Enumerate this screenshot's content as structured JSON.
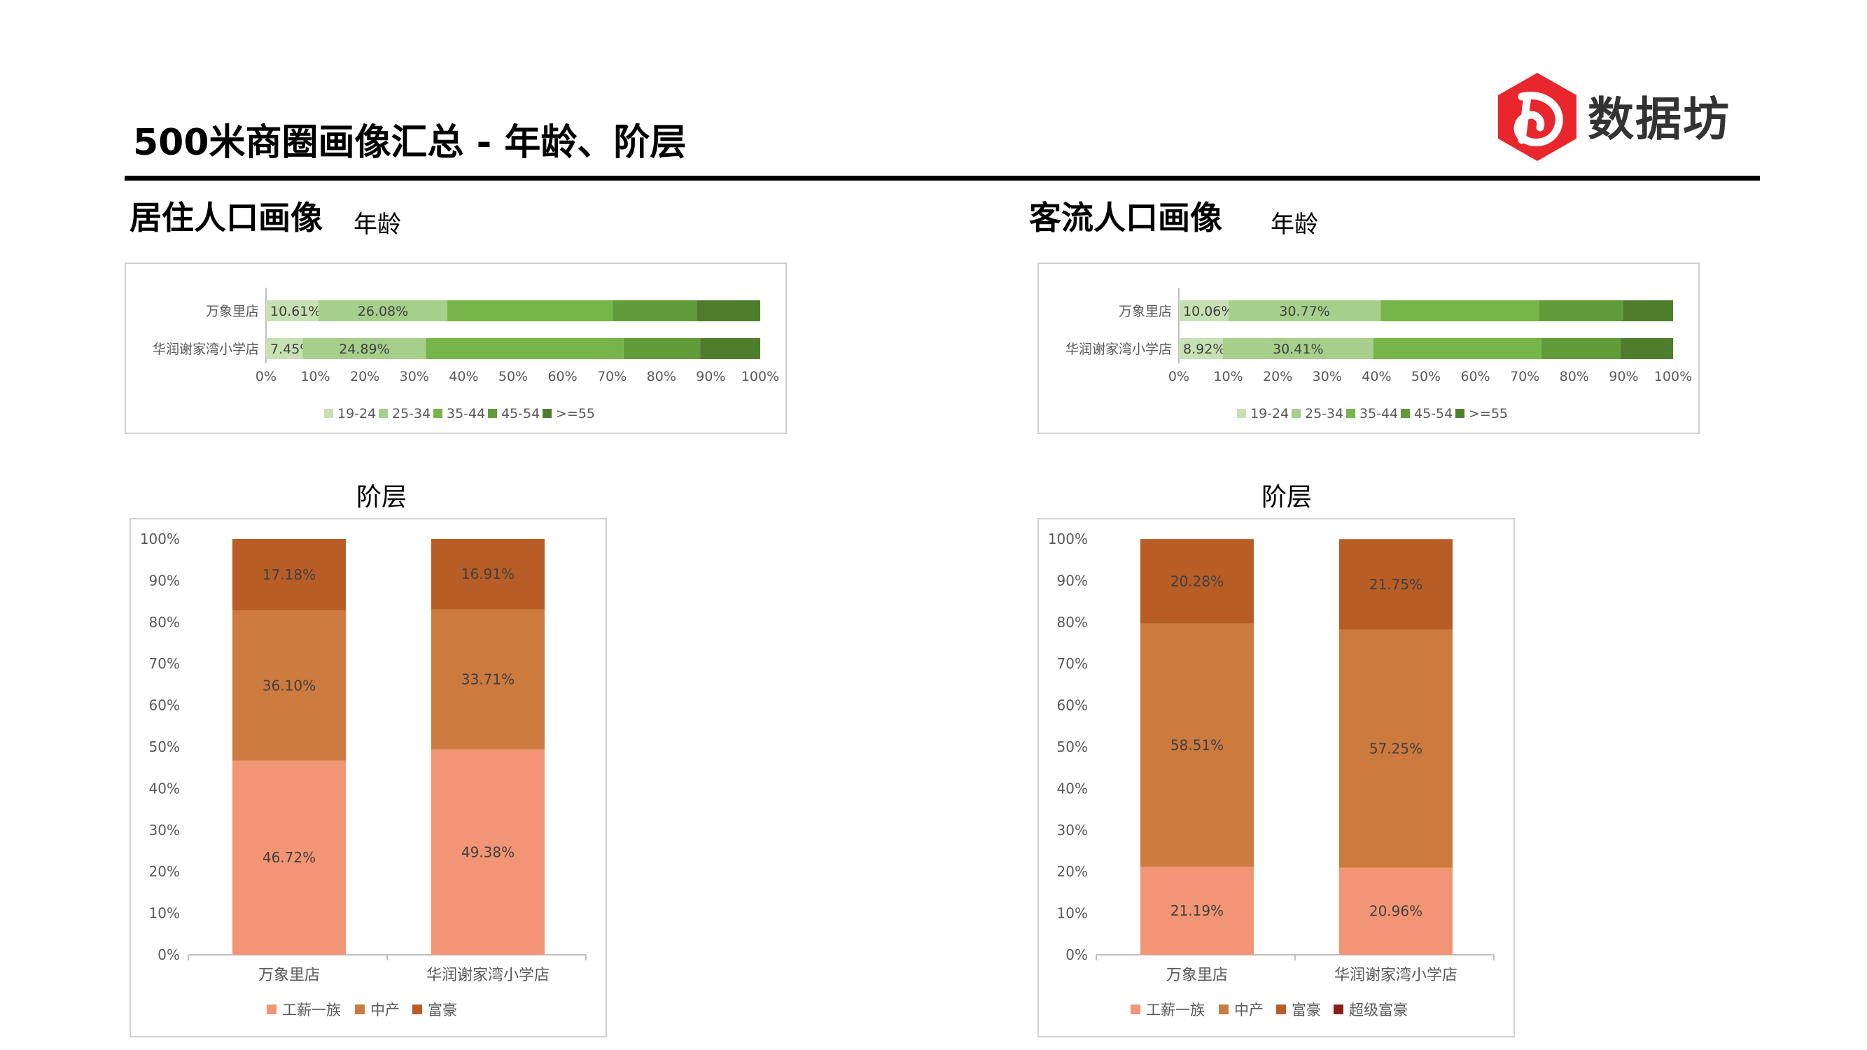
{
  "page": {
    "title": "500米商圈画像汇总 - 年龄、阶层",
    "brand": "数据坊",
    "brand_color": "#e8262c"
  },
  "sections": {
    "resident": {
      "title": "居住人口画像",
      "age_label": "年龄",
      "class_label": "阶层"
    },
    "visitor": {
      "title": "客流人口画像",
      "age_label": "年龄",
      "class_label": "阶层"
    }
  },
  "chart_data": [
    {
      "id": "resident-age",
      "type": "bar",
      "orientation": "horizontal",
      "stacked": "percent",
      "categories": [
        "万象里店",
        "华润谢家湾小学店"
      ],
      "series": [
        {
          "name": "19-24",
          "color": "#c7e0b4",
          "values": [
            10.61,
            7.45
          ],
          "labels": [
            "10.61%",
            "7.45%"
          ]
        },
        {
          "name": "25-34",
          "color": "#a5cf8b",
          "values": [
            26.08,
            24.89
          ],
          "labels": [
            "26.08%",
            "24.89%"
          ]
        },
        {
          "name": "35-44",
          "color": "#76b54a",
          "values": [
            33.5,
            40.0
          ],
          "labels": [
            "",
            ""
          ]
        },
        {
          "name": "45-54",
          "color": "#629c3a",
          "values": [
            17.0,
            15.5
          ],
          "labels": [
            "",
            ""
          ]
        },
        {
          "name": ">=55",
          "color": "#4e7d2b",
          "values": [
            12.81,
            12.16
          ],
          "labels": [
            "",
            ""
          ]
        }
      ],
      "xticks": [
        "0%",
        "10%",
        "20%",
        "30%",
        "40%",
        "50%",
        "60%",
        "70%",
        "80%",
        "90%",
        "100%"
      ],
      "xlim": [
        0,
        100
      ],
      "legend_position": "bottom"
    },
    {
      "id": "visitor-age",
      "type": "bar",
      "orientation": "horizontal",
      "stacked": "percent",
      "categories": [
        "万象里店",
        "华润谢家湾小学店"
      ],
      "series": [
        {
          "name": "19-24",
          "color": "#c7e0b4",
          "values": [
            10.06,
            8.92
          ],
          "labels": [
            "10.06%",
            "8.92%"
          ]
        },
        {
          "name": "25-34",
          "color": "#a5cf8b",
          "values": [
            30.77,
            30.41
          ],
          "labels": [
            "30.77%",
            "30.41%"
          ]
        },
        {
          "name": "35-44",
          "color": "#76b54a",
          "values": [
            32.0,
            34.0
          ],
          "labels": [
            "",
            ""
          ]
        },
        {
          "name": "45-54",
          "color": "#629c3a",
          "values": [
            17.0,
            16.0
          ],
          "labels": [
            "",
            ""
          ]
        },
        {
          "name": ">=55",
          "color": "#4e7d2b",
          "values": [
            10.17,
            10.67
          ],
          "labels": [
            "",
            ""
          ]
        }
      ],
      "xticks": [
        "0%",
        "10%",
        "20%",
        "30%",
        "40%",
        "50%",
        "60%",
        "70%",
        "80%",
        "90%",
        "100%"
      ],
      "xlim": [
        0,
        100
      ],
      "legend_position": "bottom"
    },
    {
      "id": "resident-class",
      "type": "bar",
      "orientation": "vertical",
      "stacked": "percent",
      "title": "阶层",
      "categories": [
        "万象里店",
        "华润谢家湾小学店"
      ],
      "series": [
        {
          "name": "工薪一族",
          "color": "#f19574",
          "values": [
            46.72,
            49.38
          ],
          "labels": [
            "46.72%",
            "49.38%"
          ]
        },
        {
          "name": "中产",
          "color": "#cc7a3e",
          "values": [
            36.1,
            33.71
          ],
          "labels": [
            "36.10%",
            "33.71%"
          ]
        },
        {
          "name": "富豪",
          "color": "#b85d26",
          "values": [
            17.18,
            16.91
          ],
          "labels": [
            "17.18%",
            "16.91%"
          ]
        }
      ],
      "yticks": [
        "0%",
        "10%",
        "20%",
        "30%",
        "40%",
        "50%",
        "60%",
        "70%",
        "80%",
        "90%",
        "100%"
      ],
      "ylim": [
        0,
        100
      ],
      "legend_position": "bottom"
    },
    {
      "id": "visitor-class",
      "type": "bar",
      "orientation": "vertical",
      "stacked": "percent",
      "title": "阶层",
      "categories": [
        "万象里店",
        "华润谢家湾小学店"
      ],
      "series": [
        {
          "name": "工薪一族",
          "color": "#f19574",
          "values": [
            21.19,
            20.96
          ],
          "labels": [
            "21.19%",
            "20.96%"
          ]
        },
        {
          "name": "中产",
          "color": "#cc7a3e",
          "values": [
            58.51,
            57.25
          ],
          "labels": [
            "58.51%",
            "57.25%"
          ]
        },
        {
          "name": "富豪",
          "color": "#b85d26",
          "values": [
            20.28,
            21.75
          ],
          "labels": [
            "20.28%",
            "21.75%"
          ]
        },
        {
          "name": "超级富豪",
          "color": "#8c1d18",
          "values": [
            0,
            0
          ],
          "labels": [
            "",
            ""
          ]
        }
      ],
      "yticks": [
        "0%",
        "10%",
        "20%",
        "30%",
        "40%",
        "50%",
        "60%",
        "70%",
        "80%",
        "90%",
        "100%"
      ],
      "ylim": [
        0,
        100
      ],
      "legend_position": "bottom"
    }
  ]
}
